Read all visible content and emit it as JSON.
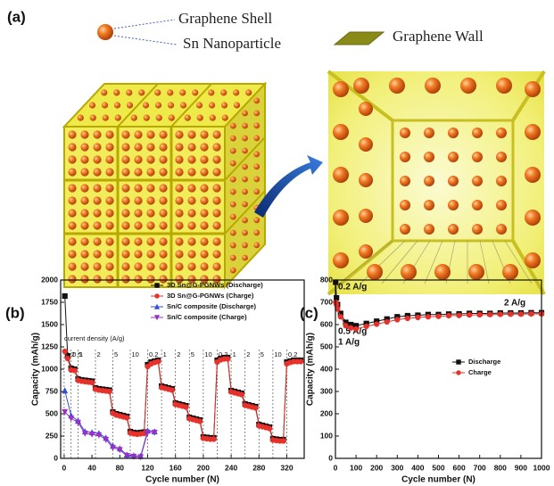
{
  "schematic": {
    "label": "(a)",
    "shell_label": "Graphene Shell",
    "particle_label": "Sn Nanoparticle",
    "wall_label": "Graphene Wall"
  },
  "chart_data": [
    {
      "type": "line",
      "panel_label": "(b)",
      "x_label": "Cycle number (N)",
      "y_label": "Capacity (mAh/g)",
      "xlim": [
        -5,
        345
      ],
      "ylim": [
        0,
        2000
      ],
      "xticks": [
        0,
        40,
        80,
        120,
        160,
        200,
        240,
        280,
        320
      ],
      "yticks": [
        0,
        250,
        500,
        750,
        1000,
        1250,
        1500,
        1750,
        2000
      ],
      "legend": "upper right",
      "annotation": "current density (A/g)",
      "rate_segments": [
        {
          "start": 0,
          "label": "0.2"
        },
        {
          "start": 10,
          "label": "0.5"
        },
        {
          "start": 20,
          "label": "1"
        },
        {
          "start": 45,
          "label": "2"
        },
        {
          "start": 70,
          "label": "5"
        },
        {
          "start": 95,
          "label": "10"
        },
        {
          "start": 120,
          "label": "0.2"
        },
        {
          "start": 140,
          "label": "1"
        },
        {
          "start": 160,
          "label": "2"
        },
        {
          "start": 180,
          "label": "5"
        },
        {
          "start": 200,
          "label": "10"
        },
        {
          "start": 220,
          "label": "0.2"
        },
        {
          "start": 240,
          "label": "1"
        },
        {
          "start": 260,
          "label": "2"
        },
        {
          "start": 280,
          "label": "5"
        },
        {
          "start": 300,
          "label": "10"
        },
        {
          "start": 320,
          "label": "0.2"
        }
      ],
      "series": [
        {
          "name": "3D Sn@G-PGNWs (Discharge)",
          "color": "#111111",
          "marker": "square",
          "x": [
            1,
            5,
            10,
            15,
            20,
            25,
            30,
            35,
            40,
            45,
            50,
            55,
            60,
            65,
            70,
            75,
            80,
            85,
            90,
            95,
            100,
            105,
            110,
            115,
            120,
            125,
            130,
            135,
            140,
            145,
            150,
            155,
            160,
            165,
            170,
            175,
            180,
            185,
            190,
            195,
            200,
            205,
            210,
            215,
            220,
            225,
            230,
            235,
            240,
            245,
            250,
            255,
            260,
            265,
            270,
            275,
            280,
            285,
            290,
            295,
            300,
            305,
            310,
            315,
            320,
            325,
            330,
            335,
            340
          ],
          "values": [
            1820,
            1150,
            1010,
            1000,
            890,
            880,
            875,
            870,
            865,
            790,
            780,
            775,
            770,
            765,
            520,
            500,
            490,
            480,
            470,
            300,
            290,
            285,
            290,
            295,
            1050,
            1080,
            1090,
            1100,
            810,
            800,
            790,
            780,
            620,
            610,
            600,
            590,
            460,
            450,
            440,
            430,
            240,
            235,
            230,
            230,
            1100,
            1120,
            1130,
            1130,
            760,
            750,
            740,
            730,
            610,
            600,
            590,
            580,
            380,
            370,
            360,
            350,
            220,
            215,
            210,
            210,
            1080,
            1090,
            1100,
            1100,
            1100
          ]
        },
        {
          "name": "3D Sn@G-PGNWs (Charge)",
          "color": "#e8312a",
          "marker": "circle",
          "x": [
            1,
            5,
            10,
            15,
            20,
            25,
            30,
            35,
            40,
            45,
            50,
            55,
            60,
            65,
            70,
            75,
            80,
            85,
            90,
            95,
            100,
            105,
            110,
            115,
            120,
            125,
            130,
            135,
            140,
            145,
            150,
            155,
            160,
            165,
            170,
            175,
            180,
            185,
            190,
            195,
            200,
            205,
            210,
            215,
            220,
            225,
            230,
            235,
            240,
            245,
            250,
            255,
            260,
            265,
            270,
            275,
            280,
            285,
            290,
            295,
            300,
            305,
            310,
            315,
            320,
            325,
            330,
            335,
            340
          ],
          "values": [
            1200,
            1120,
            990,
            985,
            875,
            865,
            860,
            855,
            850,
            775,
            765,
            760,
            755,
            750,
            505,
            485,
            475,
            465,
            455,
            285,
            275,
            270,
            275,
            280,
            1030,
            1060,
            1075,
            1085,
            795,
            785,
            775,
            765,
            605,
            595,
            585,
            575,
            445,
            435,
            425,
            415,
            225,
            220,
            215,
            215,
            1080,
            1105,
            1115,
            1115,
            745,
            735,
            725,
            715,
            595,
            585,
            575,
            565,
            365,
            355,
            345,
            335,
            205,
            200,
            195,
            195,
            1060,
            1075,
            1085,
            1085,
            1085
          ]
        },
        {
          "name": "Sn/C composite (Discharge)",
          "color": "#2f4fd8",
          "marker": "triangle",
          "x": [
            1,
            10,
            20,
            30,
            40,
            50,
            60,
            70,
            80,
            90,
            100,
            110,
            120,
            130
          ],
          "values": [
            760,
            480,
            420,
            300,
            290,
            280,
            230,
            140,
            110,
            40,
            30,
            25,
            310,
            300
          ]
        },
        {
          "name": "Sn/C composite (Charge)",
          "color": "#9b2fc8",
          "marker": "triangle-down",
          "x": [
            1,
            10,
            20,
            30,
            40,
            50,
            60,
            70,
            80,
            90,
            100,
            110,
            120,
            130
          ],
          "values": [
            520,
            450,
            400,
            280,
            270,
            260,
            210,
            120,
            95,
            30,
            20,
            15,
            290,
            290
          ]
        }
      ]
    },
    {
      "type": "line",
      "panel_label": "(c)",
      "x_label": "Cycle number (N)",
      "y_label": "Capacity (mAh/g)",
      "xlim": [
        0,
        1000
      ],
      "ylim": [
        0,
        800
      ],
      "xticks": [
        0,
        100,
        200,
        300,
        400,
        500,
        600,
        700,
        800,
        900,
        1000
      ],
      "yticks": [
        0,
        100,
        200,
        300,
        400,
        500,
        600,
        700,
        800
      ],
      "legend": "right",
      "annotations": [
        "0.2 A/g",
        "0.5 A/g",
        "1 A/g",
        "2 A/g"
      ],
      "series": [
        {
          "name": "Discharge",
          "color": "#111111",
          "marker": "square",
          "x": [
            1,
            5,
            10,
            25,
            50,
            75,
            100,
            150,
            200,
            250,
            300,
            350,
            400,
            450,
            500,
            550,
            600,
            650,
            700,
            750,
            800,
            850,
            900,
            950,
            1000
          ],
          "values": [
            790,
            720,
            690,
            650,
            610,
            600,
            595,
            605,
            615,
            625,
            635,
            640,
            642,
            645,
            645,
            647,
            648,
            650,
            650,
            650,
            652,
            652,
            652,
            653,
            653
          ]
        },
        {
          "name": "Charge",
          "color": "#e8312a",
          "marker": "circle",
          "x": [
            1,
            5,
            10,
            25,
            50,
            75,
            100,
            150,
            200,
            250,
            300,
            350,
            400,
            450,
            500,
            550,
            600,
            650,
            700,
            750,
            800,
            850,
            900,
            950,
            1000
          ],
          "values": [
            700,
            690,
            670,
            635,
            595,
            585,
            580,
            592,
            602,
            612,
            622,
            628,
            632,
            635,
            637,
            640,
            641,
            643,
            644,
            645,
            646,
            647,
            647,
            648,
            648
          ]
        }
      ]
    }
  ]
}
